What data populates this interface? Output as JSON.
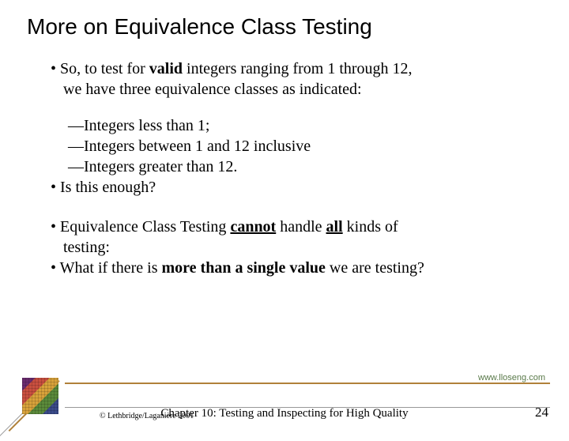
{
  "title": "More on Equivalence Class Testing",
  "bullets": {
    "b1_part1": "So, to test for ",
    "b1_valid": "valid",
    "b1_part2": " integers ranging from 1 through 12,",
    "b1_line2": "we have three equivalence classes as indicated:",
    "dash1": "—Integers less than 1;",
    "dash2": "—Integers between 1 and 12 inclusive",
    "dash3": "—Integers greater than 12.",
    "b2": "Is this enough?",
    "b3_part1": "Equivalence Class Testing ",
    "b3_cannot": "cannot",
    "b3_part2": " handle ",
    "b3_all": "all",
    "b3_part3": " kinds of",
    "b3_line2": "testing:",
    "b4_part1": "What if there is ",
    "b4_bold": "more than a single value",
    "b4_part2": " we are testing?"
  },
  "footer": {
    "url": "www.lloseng.com",
    "copyright": "© Lethbridge/Laganière 2001",
    "chapter": "Chapter 10: Testing and Inspecting for High Quality",
    "page": "24"
  },
  "colors": {
    "accent_line": "#b0813a",
    "url_color": "#5a7a4a"
  }
}
